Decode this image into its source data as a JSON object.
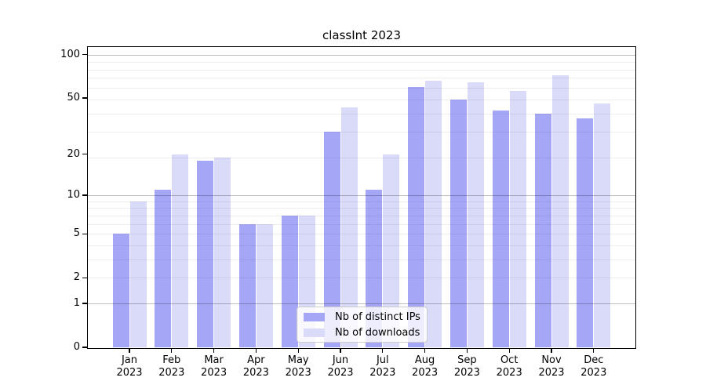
{
  "chart_data": {
    "type": "bar",
    "title": "classInt 2023",
    "categories": [
      {
        "month": "Jan",
        "year": "2023"
      },
      {
        "month": "Feb",
        "year": "2023"
      },
      {
        "month": "Mar",
        "year": "2023"
      },
      {
        "month": "Apr",
        "year": "2023"
      },
      {
        "month": "May",
        "year": "2023"
      },
      {
        "month": "Jun",
        "year": "2023"
      },
      {
        "month": "Jul",
        "year": "2023"
      },
      {
        "month": "Aug",
        "year": "2023"
      },
      {
        "month": "Sep",
        "year": "2023"
      },
      {
        "month": "Oct",
        "year": "2023"
      },
      {
        "month": "Nov",
        "year": "2023"
      },
      {
        "month": "Dec",
        "year": "2023"
      }
    ],
    "series": [
      {
        "name": "Nb of distinct IPs",
        "key": "distinct-ips",
        "color": "#a6a6f7",
        "values": [
          5,
          11,
          18,
          6,
          7,
          29,
          11,
          60,
          49,
          41,
          39,
          36
        ]
      },
      {
        "name": "Nb of downloads",
        "key": "downloads",
        "color": "#dadaf9",
        "values": [
          9,
          20,
          19,
          6,
          7,
          43,
          20,
          66,
          64,
          56,
          72,
          46
        ]
      }
    ],
    "y_axis": {
      "scale": "log1p",
      "ticks": [
        0,
        1,
        2,
        5,
        10,
        20,
        50,
        100
      ],
      "limit_top": 113,
      "major_gridlines": [
        1,
        10,
        100
      ],
      "minor_gridlines": [
        2,
        3,
        4,
        5,
        6,
        7,
        8,
        9,
        19,
        29,
        39,
        49,
        59,
        69,
        79,
        89
      ]
    },
    "xlabel": "",
    "ylabel": "",
    "grid": "horizontal-both",
    "legend_position": "lower center"
  }
}
